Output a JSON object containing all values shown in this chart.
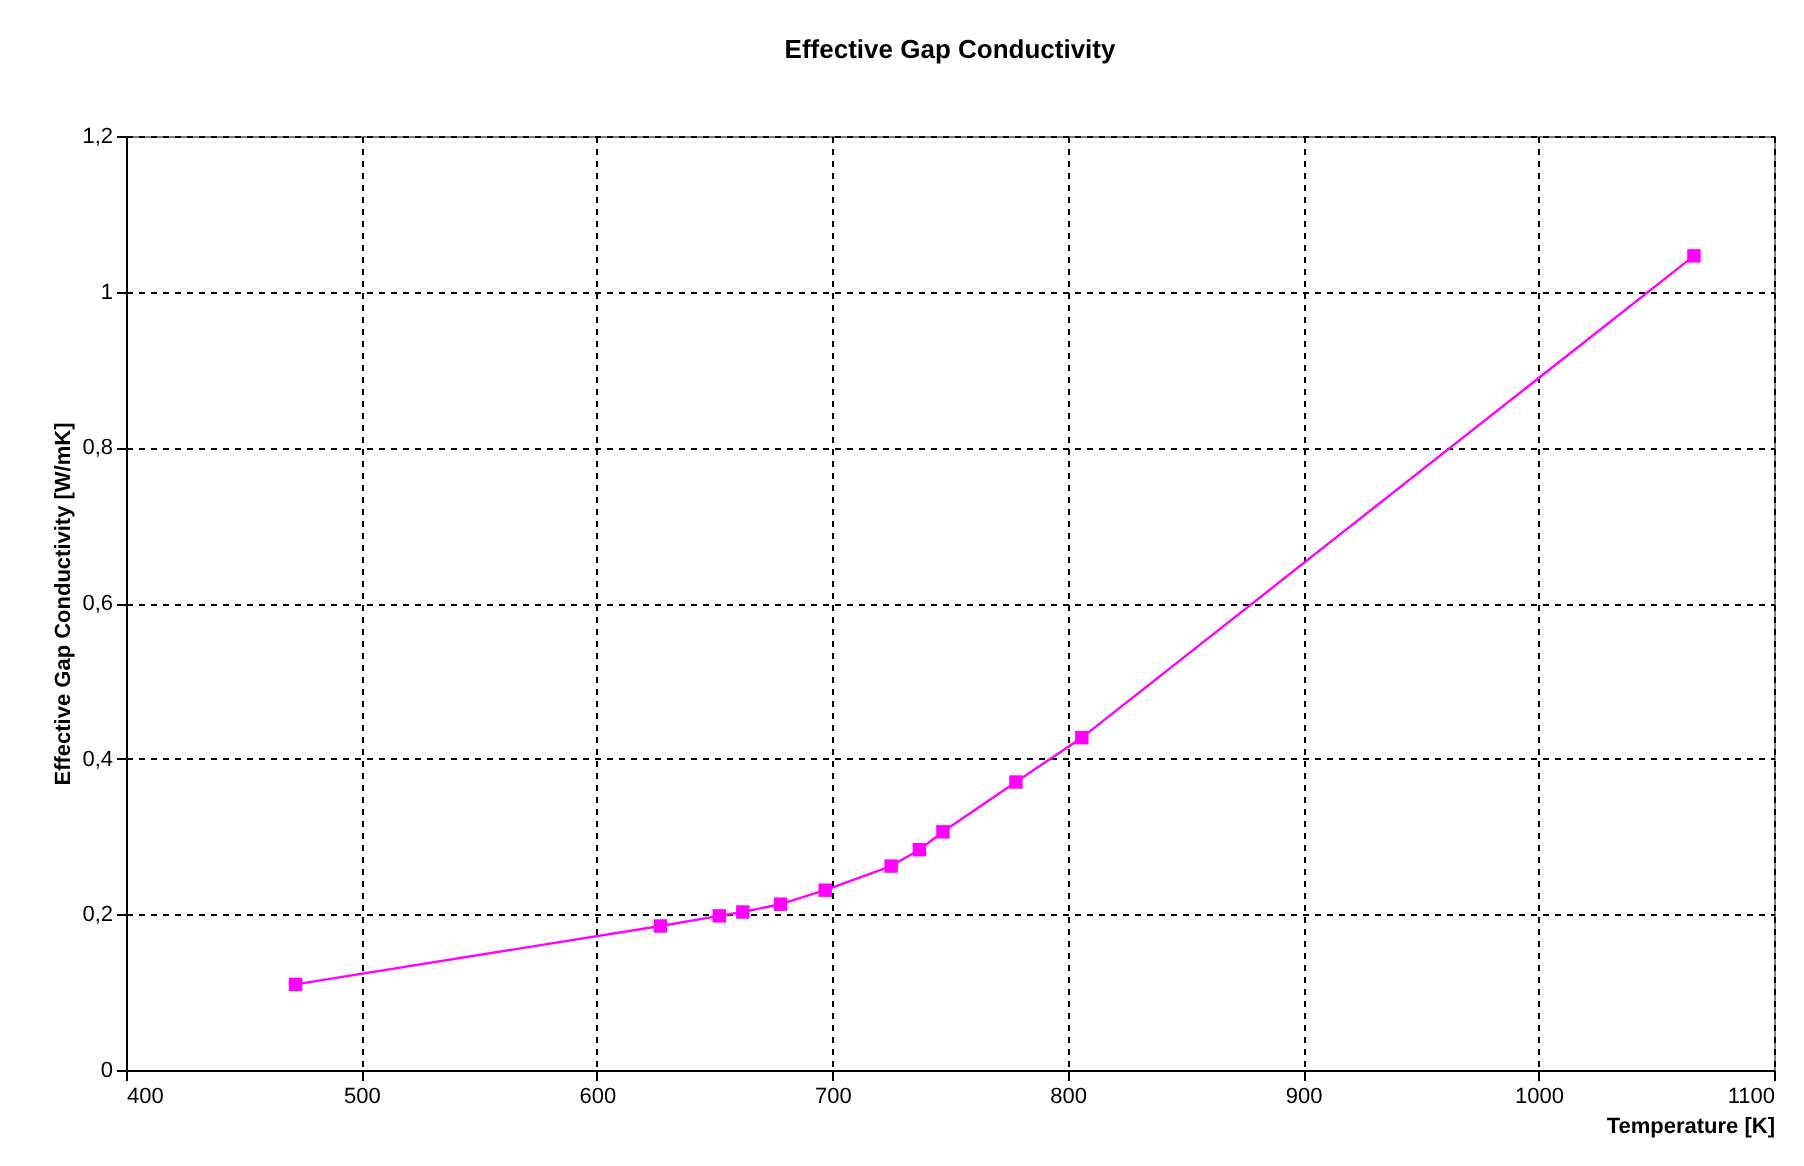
{
  "chart_data": {
    "type": "line",
    "title": "Effective Gap Conductivity",
    "xlabel": "Temperature [K]",
    "ylabel": "Effective Gap Conductivity [W/mK]",
    "x": [
      472,
      627,
      652,
      662,
      678,
      697,
      725,
      737,
      747,
      778,
      806,
      1066
    ],
    "series": [
      {
        "color": "#ff00ff",
        "values": [
          0.11,
          0.185,
          0.198,
          0.203,
          0.213,
          0.231,
          0.262,
          0.283,
          0.306,
          0.37,
          0.427,
          1.046
        ]
      }
    ],
    "xlim": [
      400,
      1100
    ],
    "xticks": [
      400,
      500,
      600,
      700,
      800,
      900,
      1000,
      1100
    ],
    "ylim": [
      0,
      1.2
    ],
    "yticks": [
      0,
      {
        "value": 0.2,
        "label": "0,2"
      },
      {
        "value": 0.4,
        "label": "0,4"
      },
      {
        "value": 0.6,
        "label": "0,6"
      },
      {
        "value": 0.8,
        "label": "0,8"
      },
      1,
      {
        "value": 1.2,
        "label": "1,2"
      }
    ],
    "grid": true,
    "marker": "square",
    "line_style": "solid"
  }
}
